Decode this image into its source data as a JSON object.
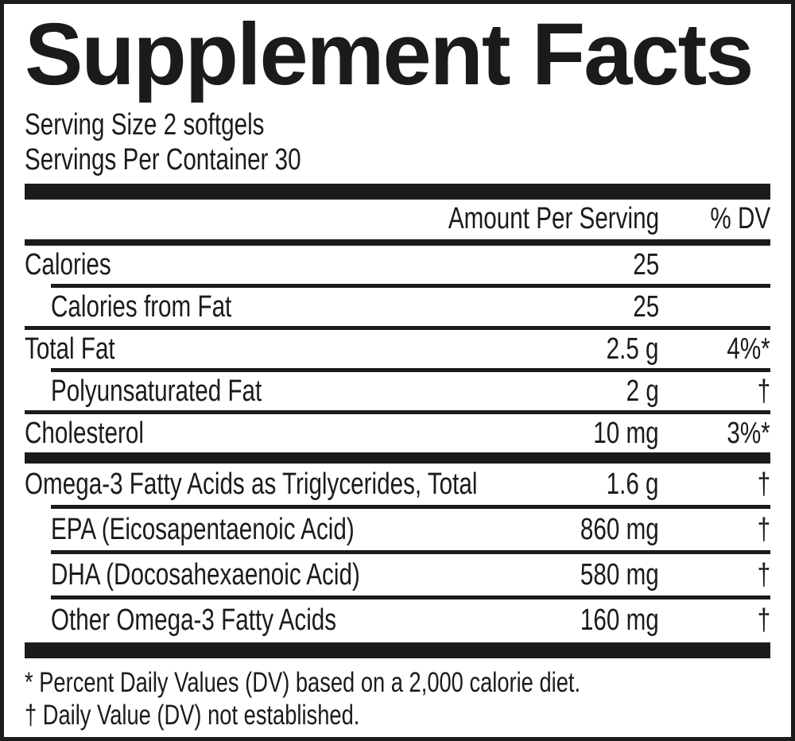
{
  "label": {
    "title": "Supplement Facts",
    "serving_size": "Serving Size 2 softgels",
    "servings_per_container": "Servings Per Container 30",
    "columns": {
      "amount": "Amount Per Serving",
      "dv": "% DV"
    },
    "rows": [
      {
        "name": "Calories",
        "amount": "25",
        "dv": "",
        "indent": false
      },
      {
        "name": "Calories from Fat",
        "amount": "25",
        "dv": "",
        "indent": true
      },
      {
        "name": "Total Fat",
        "amount": "2.5 g",
        "dv": "4%*",
        "indent": false
      },
      {
        "name": "Polyunsaturated Fat",
        "amount": "2 g",
        "dv": "†",
        "indent": true
      },
      {
        "name": "Cholesterol",
        "amount": "10 mg",
        "dv": "3%*",
        "indent": false
      },
      {
        "name": "Omega-3 Fatty Acids as Triglycerides, Total",
        "amount": "1.6 g",
        "dv": "†",
        "indent": false
      },
      {
        "name": "EPA (Eicosapentaenoic Acid)",
        "amount": "860 mg",
        "dv": "†",
        "indent": true
      },
      {
        "name": "DHA (Docosahexaenoic Acid)",
        "amount": "580 mg",
        "dv": "†",
        "indent": true
      },
      {
        "name": "Other Omega-3 Fatty Acids",
        "amount": "160 mg",
        "dv": "†",
        "indent": true
      }
    ],
    "footnotes": [
      "* Percent Daily Values (DV) based on a 2,000 calorie diet.",
      "† Daily Value (DV) not established."
    ],
    "colors": {
      "ink": "#1c1a1b",
      "background": "#ffffff"
    }
  }
}
